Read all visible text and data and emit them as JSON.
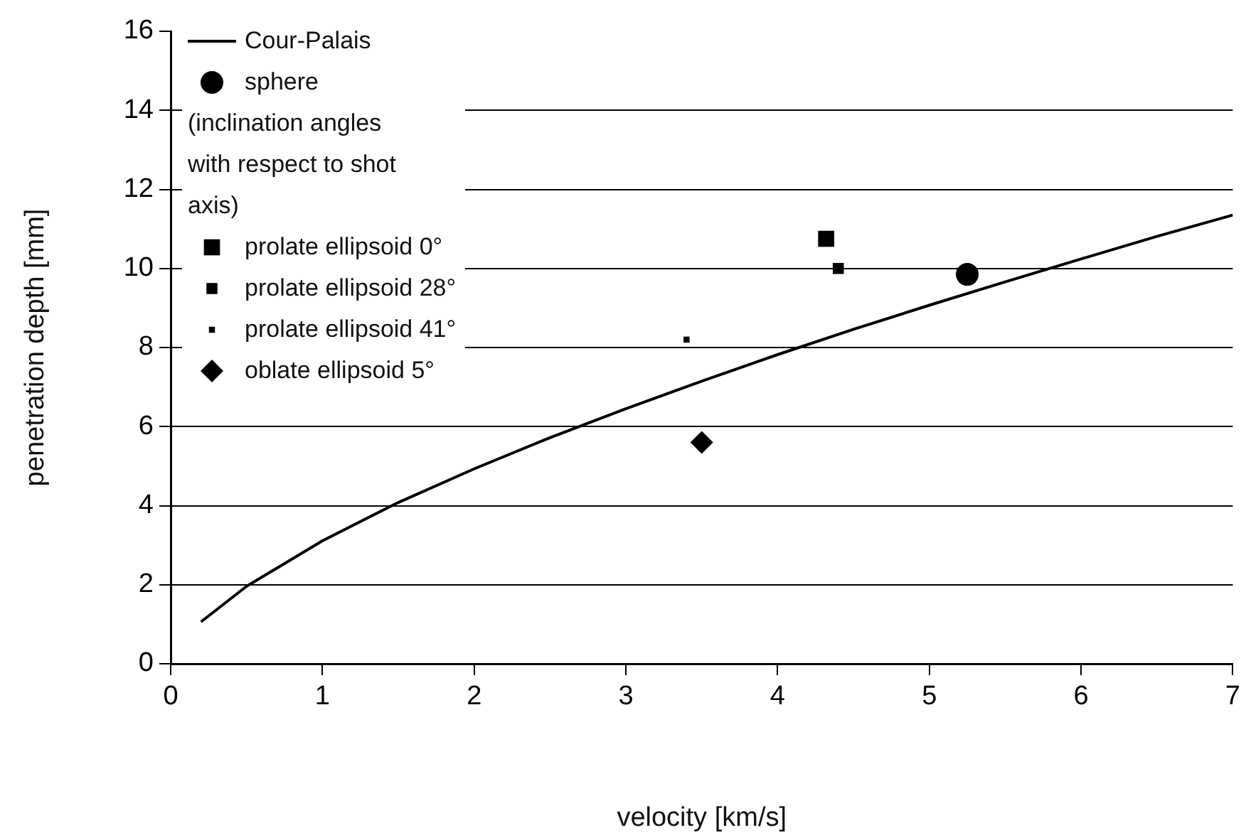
{
  "chart_data": {
    "type": "scatter",
    "xlabel": "velocity [km/s]",
    "ylabel": "penetration depth [mm]",
    "xlim": [
      0,
      7
    ],
    "xticks": [
      0,
      1,
      2,
      3,
      4,
      5,
      6,
      7
    ],
    "ylim": [
      0,
      16
    ],
    "yticks": [
      0,
      2,
      4,
      6,
      8,
      10,
      12,
      14,
      16
    ],
    "grid": "y",
    "legend": "top left",
    "annotations": [
      "(inclination angles with respect to shot axis)"
    ],
    "series": [
      {
        "name": "Cour-Palais",
        "type": "line",
        "color": "#000000",
        "marker": "none",
        "line_style": "solid",
        "x": [
          0.2,
          0.5,
          1,
          1.5,
          2,
          2.5,
          3,
          3.5,
          4,
          4.5,
          5,
          5.5,
          6,
          6.5,
          7
        ],
        "values": [
          1.06,
          1.96,
          3.11,
          4.08,
          4.93,
          5.72,
          6.45,
          7.15,
          7.82,
          8.46,
          9.07,
          9.66,
          10.24,
          10.81,
          11.35
        ]
      },
      {
        "name": "sphere",
        "color": "#000000",
        "marker": "circle",
        "x": [
          5.25
        ],
        "values": [
          9.85
        ]
      },
      {
        "name": "prolate ellipsoid 0°",
        "color": "#000000",
        "marker": "square",
        "x": [
          4.32
        ],
        "values": [
          10.75
        ]
      },
      {
        "name": "prolate ellipsoid 28°",
        "color": "#000000",
        "marker": "square",
        "x": [
          4.4
        ],
        "values": [
          10.0
        ]
      },
      {
        "name": "prolate ellipsoid 41°",
        "color": "#000000",
        "marker": "square",
        "x": [
          3.4
        ],
        "values": [
          8.2
        ]
      },
      {
        "name": "oblate ellipsoid 5°",
        "color": "#000000",
        "marker": "diamond",
        "x": [
          3.5
        ],
        "values": [
          5.6
        ]
      }
    ]
  }
}
